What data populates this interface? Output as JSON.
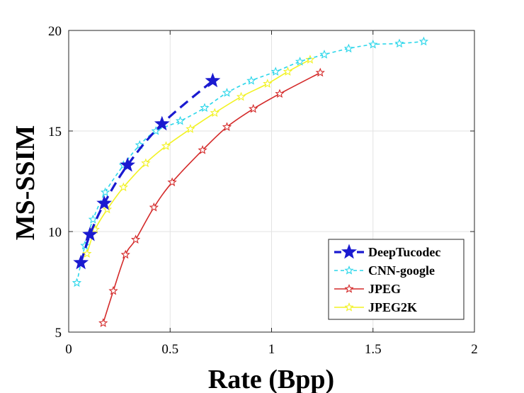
{
  "chart_data": {
    "type": "line",
    "title": "",
    "xlabel": "Rate (Bpp)",
    "ylabel": "MS-SSIM",
    "xlim": [
      0,
      2
    ],
    "ylim": [
      5,
      20
    ],
    "xticks": [
      0,
      0.5,
      1,
      1.5,
      2
    ],
    "xtick_labels": [
      "0",
      "0.5",
      "1",
      "1.5",
      "2"
    ],
    "yticks": [
      5,
      10,
      15,
      20
    ],
    "ytick_labels": [
      "5",
      "10",
      "15",
      "20"
    ],
    "grid": true,
    "legend_position": "bottom-right",
    "series": [
      {
        "name": "DeepTucodec",
        "color": "#1a1ad0",
        "line_style": "dashed",
        "marker": "filled-star",
        "x": [
          0.06,
          0.105,
          0.175,
          0.29,
          0.46,
          0.71
        ],
        "y": [
          8.45,
          9.85,
          11.4,
          13.3,
          15.35,
          17.5
        ]
      },
      {
        "name": "CNN-google",
        "color": "#2ad6ea",
        "line_style": "dotted",
        "marker": "open-star",
        "x": [
          0.04,
          0.08,
          0.12,
          0.18,
          0.27,
          0.35,
          0.43,
          0.55,
          0.67,
          0.78,
          0.9,
          1.02,
          1.14,
          1.26,
          1.38,
          1.5,
          1.63,
          1.75
        ],
        "y": [
          7.45,
          9.3,
          10.6,
          11.95,
          13.3,
          14.3,
          15.0,
          15.5,
          16.15,
          16.9,
          17.5,
          17.95,
          18.45,
          18.8,
          19.1,
          19.3,
          19.35,
          19.45
        ]
      },
      {
        "name": "JPEG",
        "color": "#d42a2a",
        "line_style": "solid",
        "marker": "open-star",
        "x": [
          0.17,
          0.22,
          0.28,
          0.33,
          0.42,
          0.51,
          0.66,
          0.78,
          0.91,
          1.04,
          1.24
        ],
        "y": [
          5.45,
          7.05,
          8.85,
          9.6,
          11.2,
          12.45,
          14.05,
          15.2,
          16.1,
          16.85,
          17.9
        ]
      },
      {
        "name": "JPEG2K",
        "color": "#f2f224",
        "line_style": "solid",
        "marker": "open-star",
        "x": [
          0.09,
          0.13,
          0.19,
          0.27,
          0.38,
          0.48,
          0.6,
          0.72,
          0.85,
          0.98,
          1.08,
          1.19
        ],
        "y": [
          8.9,
          10.1,
          11.1,
          12.2,
          13.4,
          14.25,
          15.1,
          15.9,
          16.7,
          17.35,
          17.95,
          18.55
        ]
      }
    ]
  }
}
